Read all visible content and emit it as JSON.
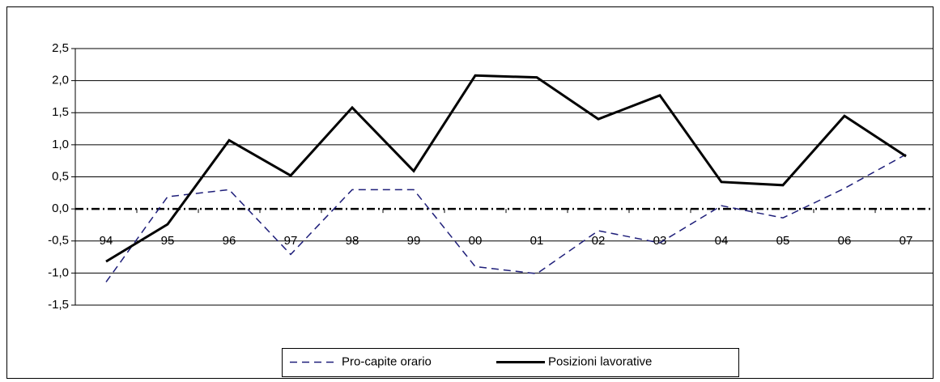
{
  "chart_data": {
    "type": "line",
    "categories": [
      "94",
      "95",
      "96",
      "97",
      "98",
      "99",
      "00",
      "01",
      "02",
      "03",
      "04",
      "05",
      "06",
      "07"
    ],
    "series": [
      {
        "name": "Pro-capite orario",
        "color": "#1f1f7a",
        "dash": true,
        "values": [
          -1.14,
          0.19,
          0.3,
          -0.71,
          0.3,
          0.3,
          -0.9,
          -1.01,
          -0.34,
          -0.53,
          0.05,
          -0.14,
          0.32,
          0.85
        ]
      },
      {
        "name": "Posizioni lavorative",
        "color": "#000000",
        "dash": false,
        "values": [
          -0.82,
          -0.24,
          1.07,
          0.52,
          1.58,
          0.59,
          2.08,
          2.05,
          1.4,
          1.77,
          0.42,
          0.37,
          1.45,
          0.82
        ]
      }
    ],
    "ylim": [
      -1.5,
      2.5
    ],
    "yticks": [
      {
        "value": -1.5,
        "label": "-1,5"
      },
      {
        "value": -1,
        "label": "-1,0"
      },
      {
        "value": -0.5,
        "label": "-0,5"
      },
      {
        "value": 0,
        "label": "0,0"
      },
      {
        "value": 0.5,
        "label": "0,5"
      },
      {
        "value": 1,
        "label": "1,0"
      },
      {
        "value": 1.5,
        "label": "1,5"
      },
      {
        "value": 2,
        "label": "2,0"
      },
      {
        "value": 2.5,
        "label": "2,5"
      }
    ],
    "grid": true,
    "legend": "bottom"
  }
}
